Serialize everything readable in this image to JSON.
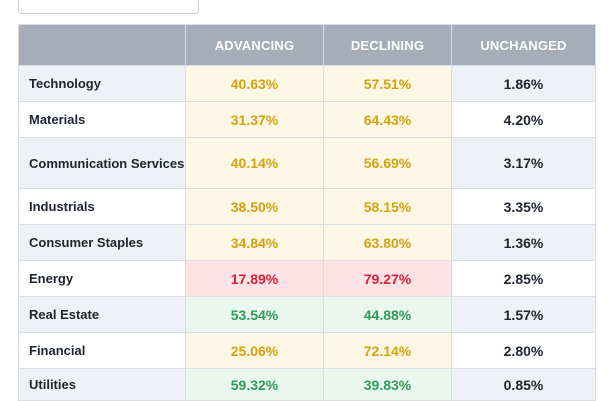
{
  "columns": {
    "sector": "",
    "advancing": "ADVANCING",
    "declining": "DECLINING",
    "unchanged": "UNCHANGED"
  },
  "rows": [
    {
      "sector": "Technology",
      "advancing": "40.63%",
      "declining": "57.51%",
      "unchanged": "1.86%"
    },
    {
      "sector": "Materials",
      "advancing": "31.37%",
      "declining": "64.43%",
      "unchanged": "4.20%"
    },
    {
      "sector": "Communication Services",
      "advancing": "40.14%",
      "declining": "56.69%",
      "unchanged": "3.17%"
    },
    {
      "sector": "Industrials",
      "advancing": "38.50%",
      "declining": "58.15%",
      "unchanged": "3.35%"
    },
    {
      "sector": "Consumer Staples",
      "advancing": "34.84%",
      "declining": "63.80%",
      "unchanged": "1.36%"
    },
    {
      "sector": "Energy",
      "advancing": "17.89%",
      "declining": "79.27%",
      "unchanged": "2.85%"
    },
    {
      "sector": "Real Estate",
      "advancing": "53.54%",
      "declining": "44.88%",
      "unchanged": "1.57%"
    },
    {
      "sector": "Financial",
      "advancing": "25.06%",
      "declining": "72.14%",
      "unchanged": "2.80%"
    },
    {
      "sector": "Utilities",
      "advancing": "59.32%",
      "declining": "39.83%",
      "unchanged": "0.85%"
    }
  ],
  "colors": {
    "header_bg": "#a5adb9",
    "neutral_text": "#d4a20c",
    "negative_text": "#d8203b",
    "positive_text": "#2f9c5a"
  }
}
